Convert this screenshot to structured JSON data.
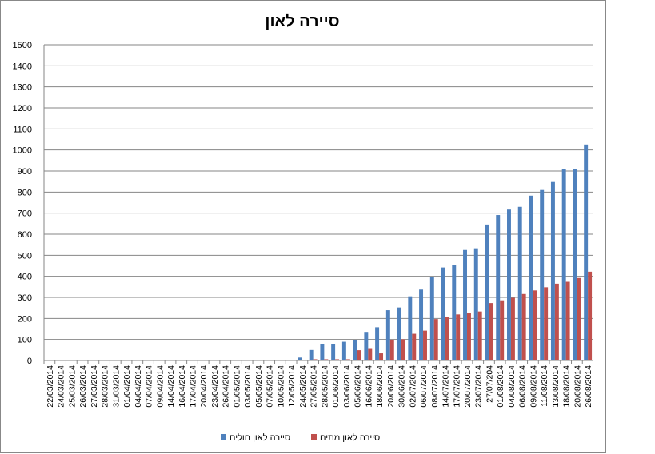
{
  "chart_data": {
    "type": "bar",
    "title": "סיירה לאון",
    "categories": [
      "22/03/2014",
      "24/03/2014",
      "25/03/2014",
      "26/03/2014",
      "27/03/2014",
      "28/03/2014",
      "31/03/2014",
      "01/04/2014",
      "04/04/2014",
      "07/04/2014",
      "09/04/2014",
      "14/04/2014",
      "16/04/2014",
      "17/04/2014",
      "20/04/2014",
      "23/04/2014",
      "26/04/2014",
      "01/05/2014",
      "03/05/2014",
      "05/05/2014",
      "07/05/2014",
      "10/05/2014",
      "12/05/2014",
      "24/05/2014",
      "27/05/2014",
      "28/05/2014",
      "01/06/2014",
      "03/06/2014",
      "05/06/2014",
      "16/06/2014",
      "18/06/2014",
      "20/06/2014",
      "30/06/2014",
      "02/07/2014",
      "06/07/2014",
      "08/07/2014",
      "14/07/2014",
      "17/07/2014",
      "20/07/2014",
      "23/07/2014",
      "27/07/204",
      "01/08/2014",
      "04/08/2014",
      "06/08/2014",
      "09/08/2014",
      "11/08/2014",
      "13/08/2014",
      "18/08/2014",
      "20/08/2014",
      "26/08/2014"
    ],
    "series": [
      {
        "name": "סיירה לאון חולים",
        "color": "#4f81bd",
        "values": [
          0,
          0,
          0,
          0,
          0,
          0,
          0,
          0,
          0,
          0,
          0,
          0,
          0,
          0,
          0,
          0,
          0,
          0,
          0,
          0,
          0,
          0,
          0,
          14,
          50,
          79,
          79,
          89,
          97,
          136,
          158,
          239,
          252,
          305,
          337,
          397,
          442,
          454,
          525,
          533,
          646,
          691,
          717,
          730,
          783,
          810,
          848,
          910,
          910,
          1026
        ]
      },
      {
        "name": "סיירה לאון מתים",
        "color": "#c0504d",
        "values": [
          0,
          0,
          0,
          0,
          0,
          0,
          0,
          0,
          0,
          0,
          0,
          0,
          0,
          0,
          0,
          0,
          0,
          0,
          0,
          0,
          0,
          0,
          0,
          2,
          6,
          6,
          6,
          6,
          49,
          55,
          34,
          99,
          101,
          127,
          142,
          197,
          206,
          219,
          224,
          233,
          273,
          286,
          298,
          316,
          333,
          348,
          365,
          374,
          392,
          422
        ]
      }
    ],
    "ylim": [
      0,
      1500
    ],
    "yticks": [
      0,
      100,
      200,
      300,
      400,
      500,
      600,
      700,
      800,
      900,
      1000,
      1100,
      1200,
      1300,
      1400,
      1500
    ],
    "grid": true,
    "legend": "bottom"
  }
}
